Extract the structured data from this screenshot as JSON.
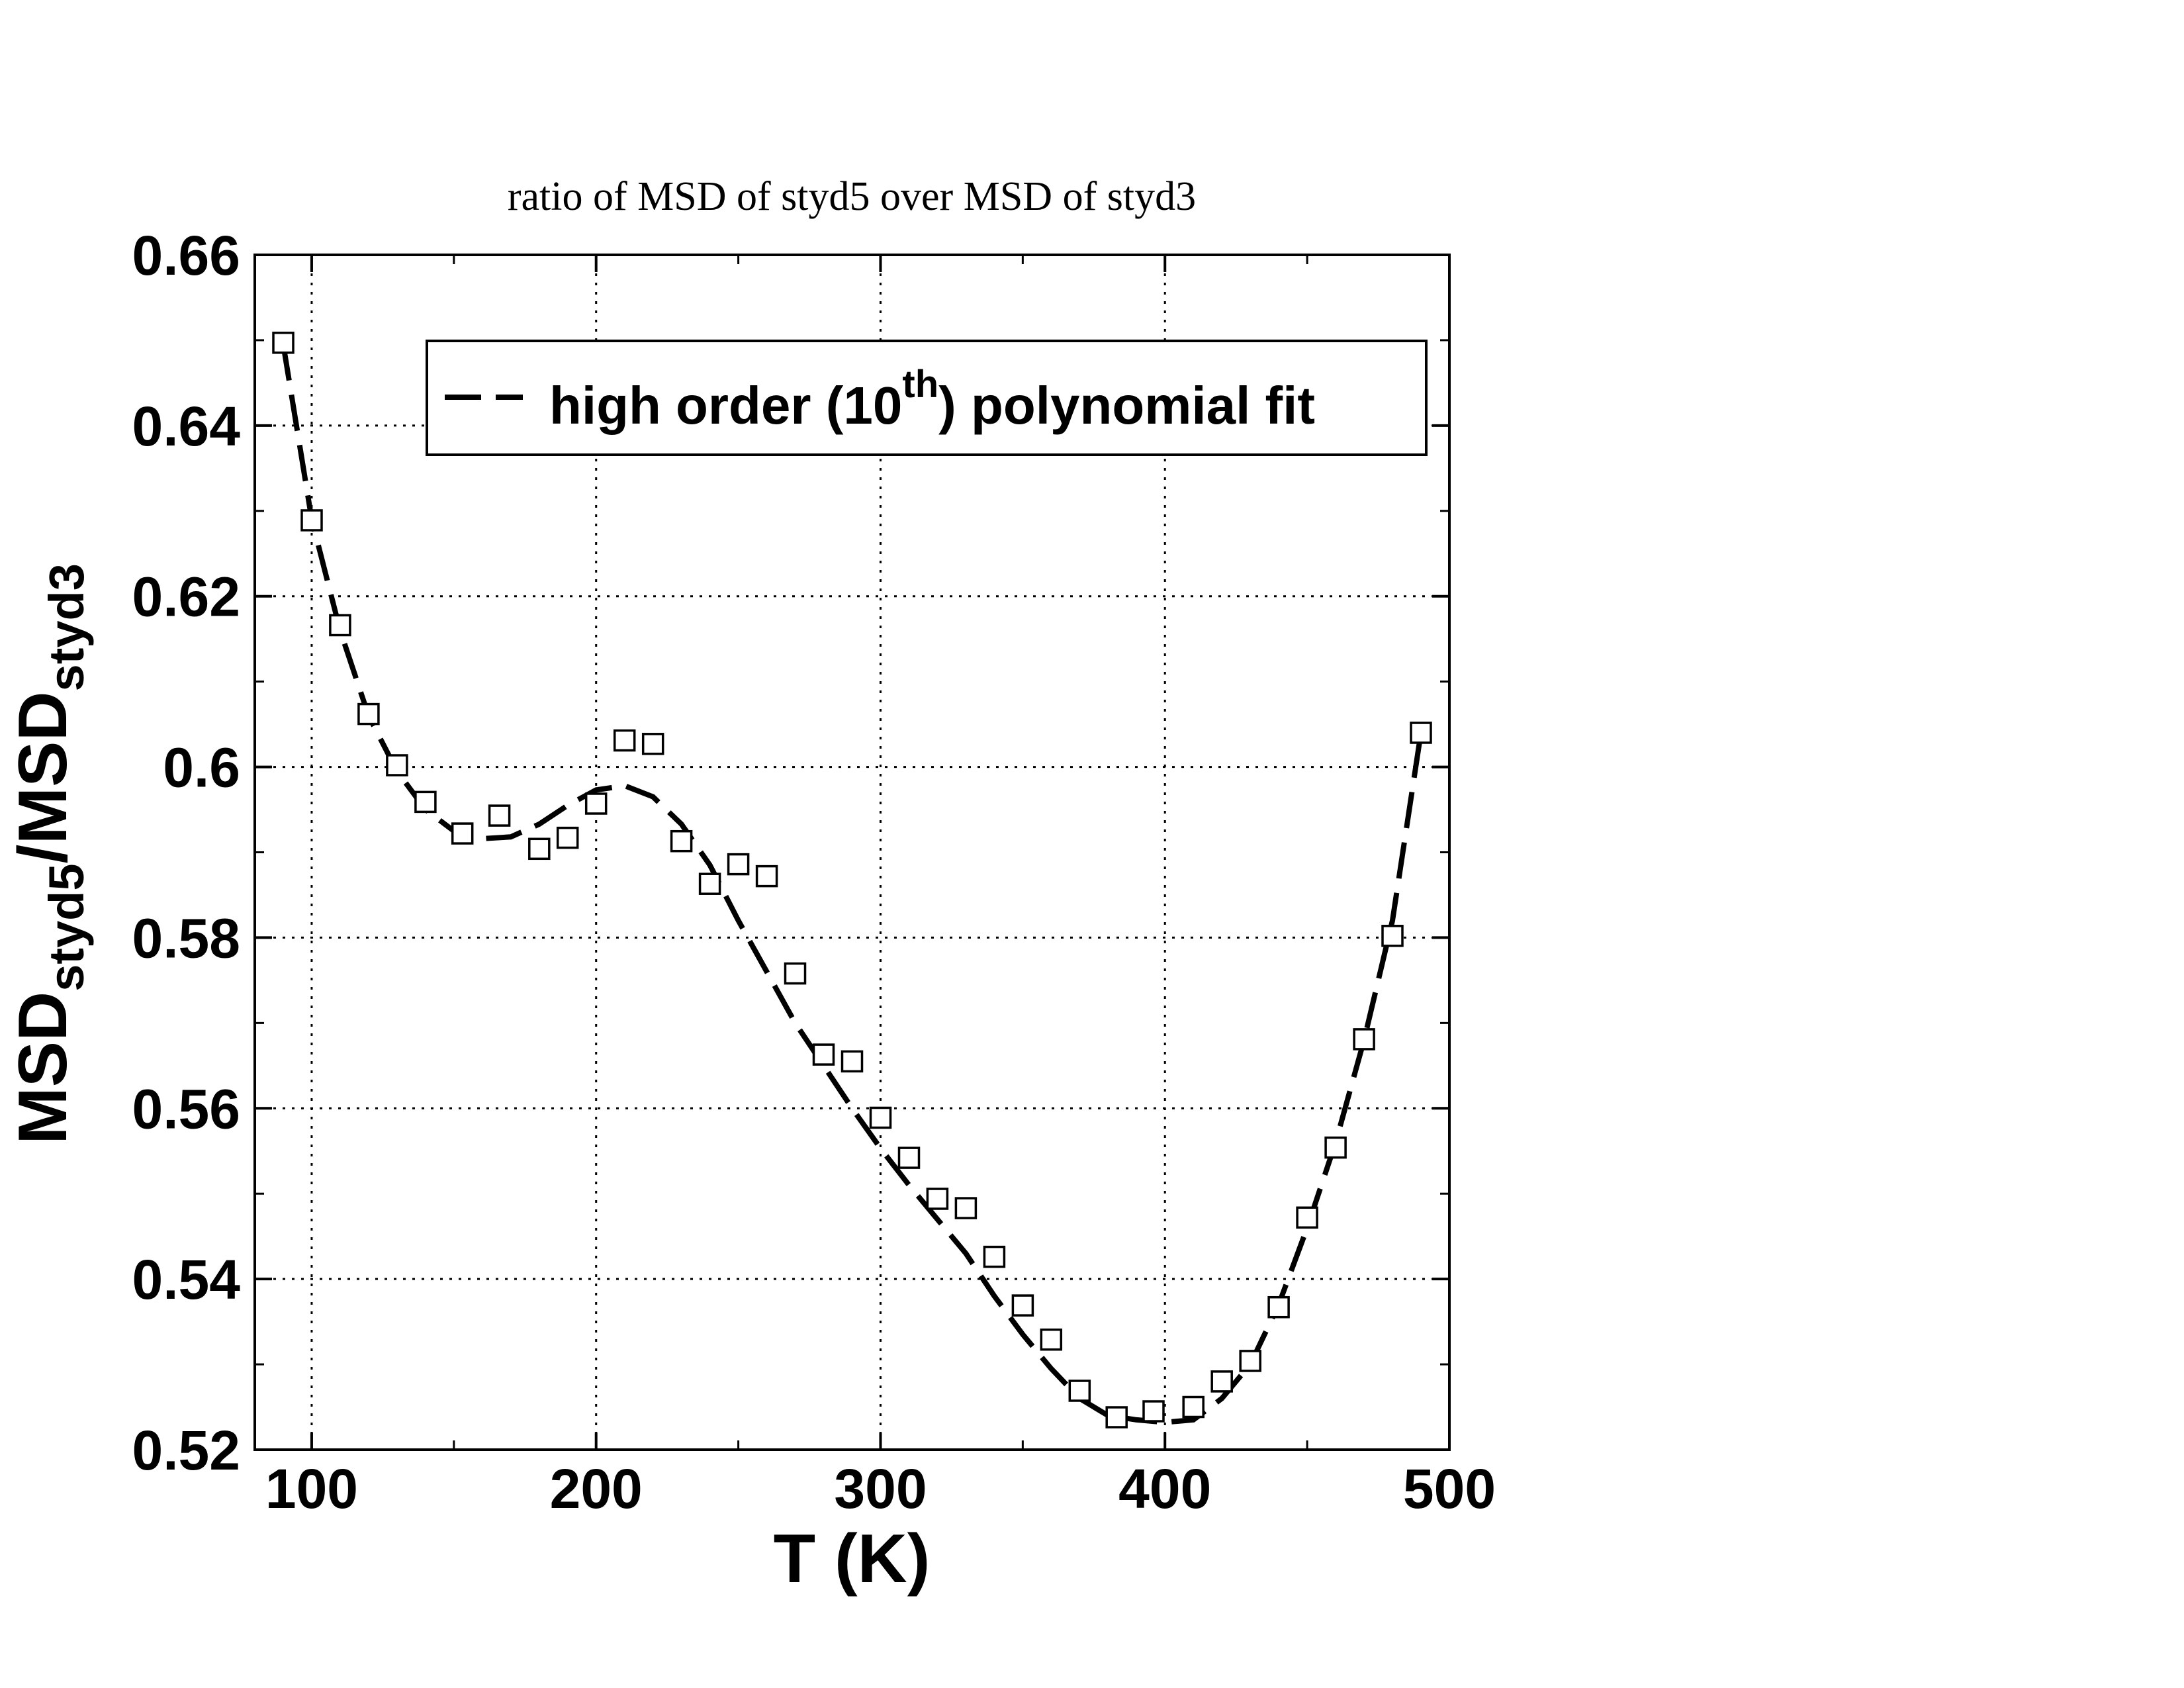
{
  "chart_data": {
    "type": "scatter",
    "title": "ratio of MSD of styd5 over MSD of styd3",
    "xlabel": "T (K)",
    "ylabel": {
      "base": "MSD",
      "sub1": "styd5",
      "slash": "/",
      "base2": "MSD",
      "sub2": "styd3"
    },
    "xlim": [
      80,
      500
    ],
    "ylim": [
      0.52,
      0.66
    ],
    "x_ticks": [
      100,
      200,
      300,
      400,
      500
    ],
    "x_tick_labels": [
      "100",
      "200",
      "300",
      "400",
      "500"
    ],
    "y_ticks": [
      0.52,
      0.54,
      0.56,
      0.58,
      0.6,
      0.62,
      0.64,
      0.66
    ],
    "y_tick_labels": [
      "0.52",
      "0.54",
      "0.56",
      "0.58",
      "0.6",
      "0.62",
      "0.64",
      "0.66"
    ],
    "grid": true,
    "legend": {
      "placement": "top-right",
      "text_main": "high order (10",
      "text_sup": "th",
      "text_end": ") polynomial fit"
    },
    "series": [
      {
        "marker": "open-square",
        "x": [
          90,
          100,
          110,
          120,
          130,
          140,
          153,
          166,
          180,
          190,
          200,
          210,
          220,
          230,
          240,
          250,
          260,
          270,
          280,
          290,
          300,
          310,
          320,
          330,
          340,
          350,
          360,
          370,
          383,
          396,
          410,
          420,
          430,
          440,
          450,
          460,
          470,
          480,
          490
        ],
        "y": [
          0.6497,
          0.6289,
          0.6166,
          0.6062,
          0.6002,
          0.5959,
          0.5922,
          0.5943,
          0.5904,
          0.5917,
          0.5957,
          0.6031,
          0.6027,
          0.5913,
          0.5863,
          0.5886,
          0.5872,
          0.5758,
          0.5663,
          0.5655,
          0.5589,
          0.5542,
          0.5494,
          0.5483,
          0.5426,
          0.5369,
          0.5329,
          0.5269,
          0.5238,
          0.5245,
          0.525,
          0.528,
          0.5304,
          0.5367,
          0.5472,
          0.5554,
          0.5681,
          0.5802,
          0.604
        ]
      },
      {
        "line": "dashed",
        "x": [
          90,
          100,
          110,
          120,
          130,
          140,
          150,
          160,
          170,
          180,
          190,
          200,
          210,
          220,
          230,
          240,
          250,
          260,
          270,
          280,
          290,
          300,
          310,
          320,
          330,
          340,
          350,
          360,
          370,
          380,
          390,
          400,
          410,
          420,
          430,
          440,
          450,
          460,
          470,
          480,
          490
        ],
        "y": [
          0.6495,
          0.629,
          0.616,
          0.606,
          0.5995,
          0.595,
          0.5925,
          0.5916,
          0.5918,
          0.5933,
          0.5955,
          0.5973,
          0.5978,
          0.5965,
          0.5933,
          0.5885,
          0.582,
          0.576,
          0.57,
          0.565,
          0.56,
          0.5553,
          0.551,
          0.547,
          0.543,
          0.538,
          0.5335,
          0.5295,
          0.526,
          0.524,
          0.5235,
          0.5232,
          0.5235,
          0.526,
          0.53,
          0.537,
          0.546,
          0.556,
          0.568,
          0.582,
          0.604
        ]
      }
    ]
  }
}
